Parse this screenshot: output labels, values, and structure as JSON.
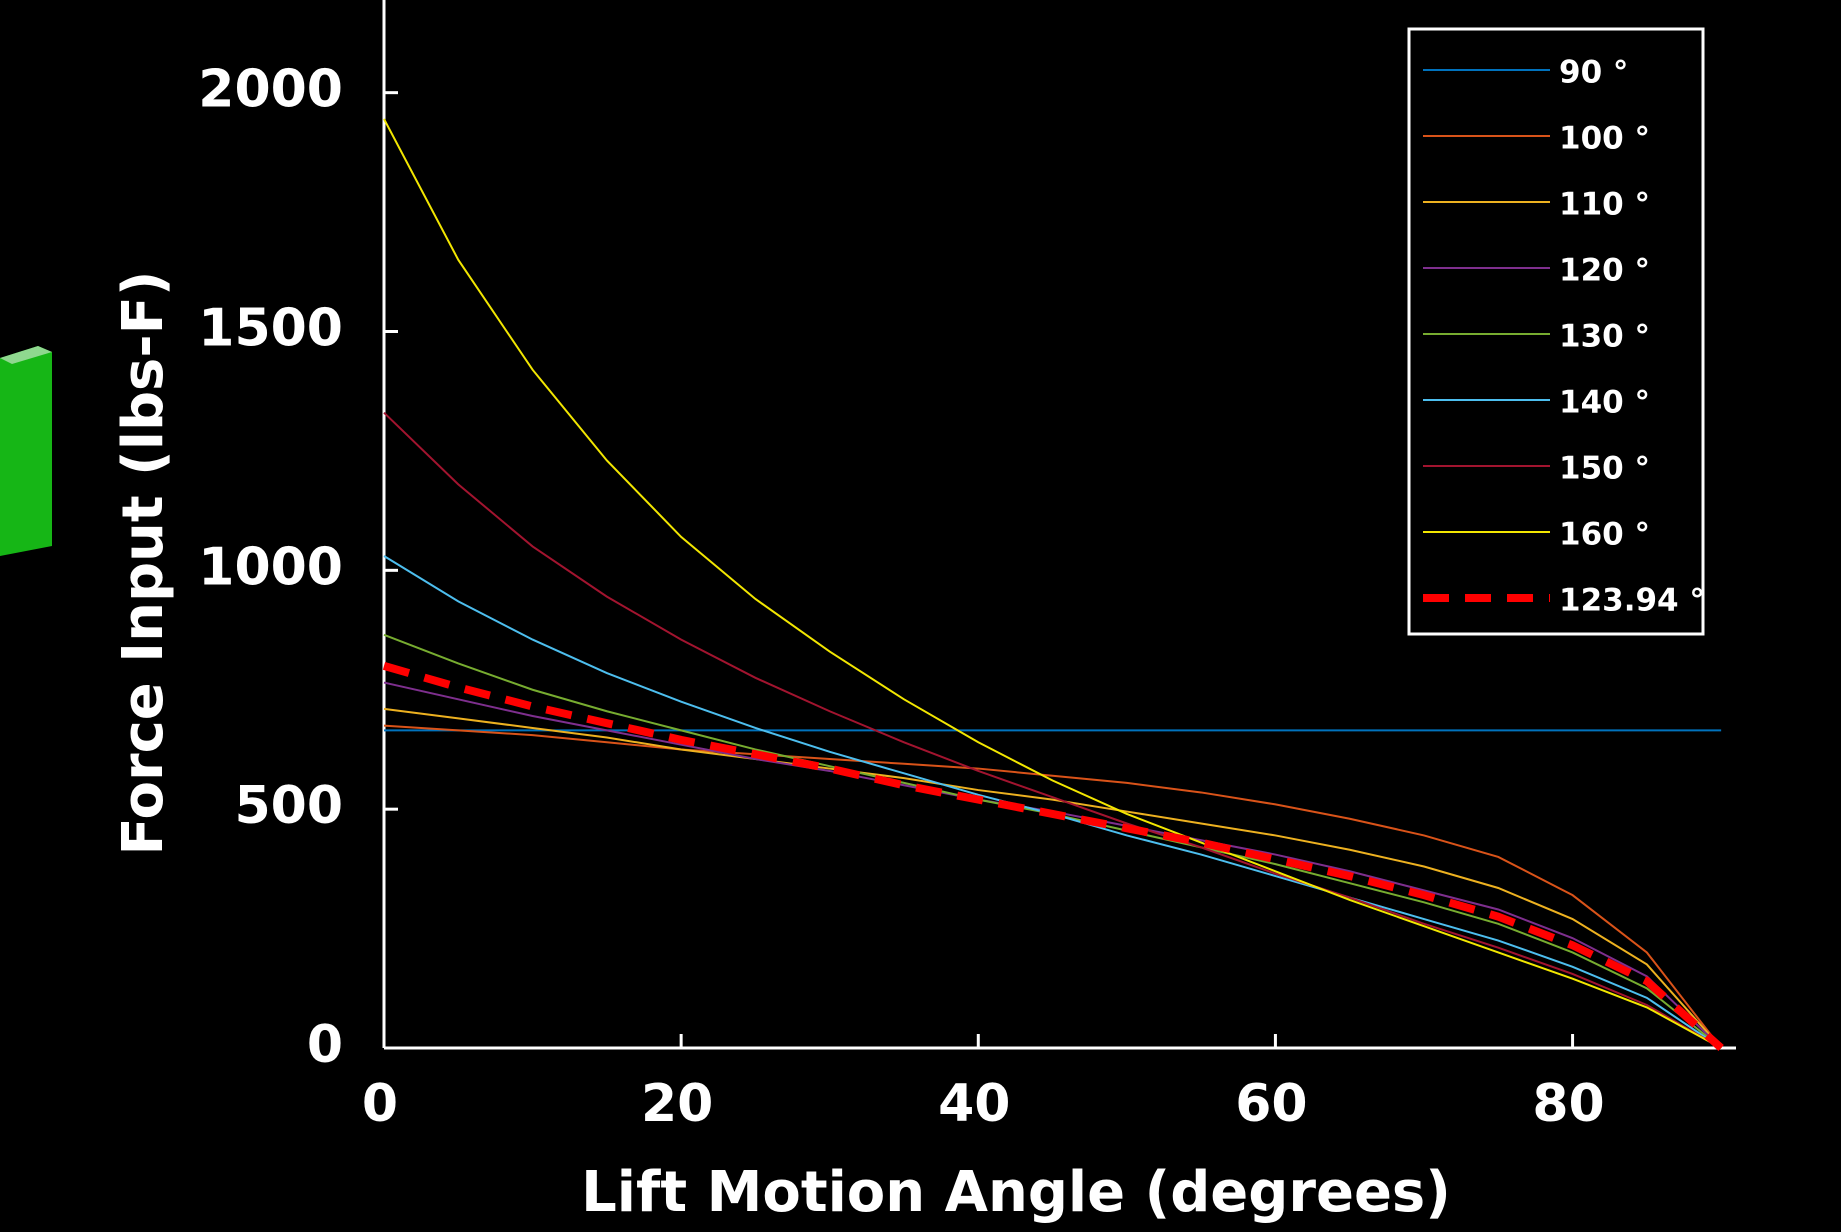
{
  "chart_data": {
    "type": "line",
    "xlabel": "Lift Motion Angle (degrees)",
    "ylabel": "Force Input (lbs-F)",
    "x": [
      0,
      5,
      10,
      15,
      20,
      25,
      30,
      35,
      40,
      45,
      50,
      55,
      60,
      65,
      70,
      75,
      80,
      85,
      90
    ],
    "series": [
      {
        "name": "90 °",
        "color": "#0072bd",
        "values": [
          665,
          665,
          665,
          665,
          665,
          665,
          665,
          665,
          665,
          665,
          665,
          665,
          665,
          665,
          665,
          665,
          665,
          665,
          665
        ]
      },
      {
        "name": "100 °",
        "color": "#d95319",
        "values": [
          675,
          665,
          655,
          640,
          625,
          615,
          605,
          595,
          585,
          570,
          555,
          535,
          510,
          480,
          445,
          400,
          320,
          200,
          0
        ]
      },
      {
        "name": "110 °",
        "color": "#edb120",
        "values": [
          710,
          690,
          670,
          650,
          625,
          605,
          585,
          565,
          540,
          520,
          495,
          470,
          445,
          415,
          380,
          335,
          270,
          175,
          0
        ]
      },
      {
        "name": "120 °",
        "color": "#7e2f8e",
        "values": [
          765,
          730,
          695,
          665,
          635,
          605,
          580,
          550,
          520,
          495,
          465,
          435,
          405,
          370,
          330,
          290,
          230,
          150,
          0
        ]
      },
      {
        "name": "130 °",
        "color": "#77ac30",
        "values": [
          865,
          805,
          750,
          705,
          665,
          625,
          590,
          555,
          520,
          490,
          455,
          420,
          385,
          345,
          305,
          260,
          200,
          125,
          0
        ]
      },
      {
        "name": "140 °",
        "color": "#4dbeee",
        "values": [
          1030,
          935,
          855,
          785,
          725,
          670,
          620,
          575,
          530,
          490,
          445,
          405,
          360,
          315,
          270,
          225,
          170,
          105,
          0
        ]
      },
      {
        "name": "150 °",
        "color": "#a2142f",
        "values": [
          1330,
          1180,
          1050,
          945,
          855,
          775,
          705,
          640,
          580,
          525,
          470,
          420,
          365,
          315,
          260,
          210,
          155,
          90,
          0
        ]
      },
      {
        "name": "160 °",
        "color": "#f2e600",
        "values": [
          1945,
          1650,
          1420,
          1230,
          1070,
          940,
          830,
          730,
          640,
          560,
          490,
          430,
          370,
          310,
          255,
          200,
          145,
          85,
          0
        ]
      },
      {
        "name": "123.94 °",
        "color": "#ff0000",
        "dashed": true,
        "values": [
          800,
          755,
          715,
          680,
          645,
          615,
          585,
          550,
          520,
          490,
          460,
          430,
          395,
          360,
          320,
          275,
          215,
          140,
          0
        ]
      }
    ],
    "xlim": [
      0,
      91
    ],
    "xticks": [
      0,
      20,
      40,
      60,
      80
    ],
    "ylim": [
      0,
      2194
    ],
    "yticks": [
      0,
      500,
      1000,
      1500,
      2000
    ],
    "grid": false,
    "legend": "upper right"
  }
}
